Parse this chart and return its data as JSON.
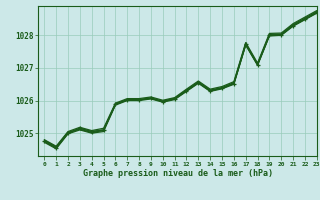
{
  "title": "Graphe pression niveau de la mer (hPa)",
  "bg_color": "#cce8e8",
  "plot_bg_color": "#cce8e8",
  "grid_color": "#99ccbb",
  "line_color": "#1a5c1a",
  "xlim": [
    -0.5,
    23
  ],
  "ylim": [
    1024.3,
    1028.9
  ],
  "yticks": [
    1025,
    1026,
    1027,
    1028
  ],
  "xticks": [
    0,
    1,
    2,
    3,
    4,
    5,
    6,
    7,
    8,
    9,
    10,
    11,
    12,
    13,
    14,
    15,
    16,
    17,
    18,
    19,
    20,
    21,
    22,
    23
  ],
  "series1": [
    1024.75,
    1024.55,
    1025.0,
    1025.15,
    1025.05,
    1025.1,
    1025.88,
    1026.02,
    1026.02,
    1026.07,
    1025.97,
    1026.05,
    1026.3,
    1026.55,
    1026.3,
    1026.38,
    1026.52,
    1027.72,
    1027.1,
    1028.0,
    1028.02,
    1028.3,
    1028.5,
    1028.7
  ],
  "series2": [
    1024.78,
    1024.58,
    1025.03,
    1025.12,
    1025.02,
    1025.08,
    1025.9,
    1026.03,
    1026.03,
    1026.08,
    1025.98,
    1026.07,
    1026.32,
    1026.57,
    1026.32,
    1026.4,
    1026.55,
    1027.75,
    1027.12,
    1028.03,
    1028.04,
    1028.33,
    1028.53,
    1028.73
  ],
  "series3": [
    1024.72,
    1024.52,
    1024.98,
    1025.1,
    1025.0,
    1025.05,
    1025.86,
    1026.0,
    1026.0,
    1026.05,
    1025.95,
    1026.03,
    1026.28,
    1026.53,
    1026.28,
    1026.36,
    1026.5,
    1027.7,
    1027.08,
    1027.98,
    1028.0,
    1028.28,
    1028.48,
    1028.68
  ],
  "series4": [
    1024.8,
    1024.6,
    1025.05,
    1025.18,
    1025.08,
    1025.15,
    1025.92,
    1026.06,
    1026.06,
    1026.11,
    1026.01,
    1026.09,
    1026.35,
    1026.6,
    1026.35,
    1026.43,
    1026.58,
    1027.78,
    1027.15,
    1028.06,
    1028.07,
    1028.36,
    1028.56,
    1028.76
  ],
  "marker_series": [
    1024.75,
    1024.55,
    1025.0,
    1025.15,
    1025.05,
    1025.1,
    1025.88,
    1026.02,
    1026.02,
    1026.07,
    1025.97,
    1026.05,
    1026.3,
    1026.55,
    1026.3,
    1026.38,
    1026.52,
    1027.72,
    1027.1,
    1028.0,
    1028.02,
    1028.3,
    1028.5,
    1028.7
  ]
}
